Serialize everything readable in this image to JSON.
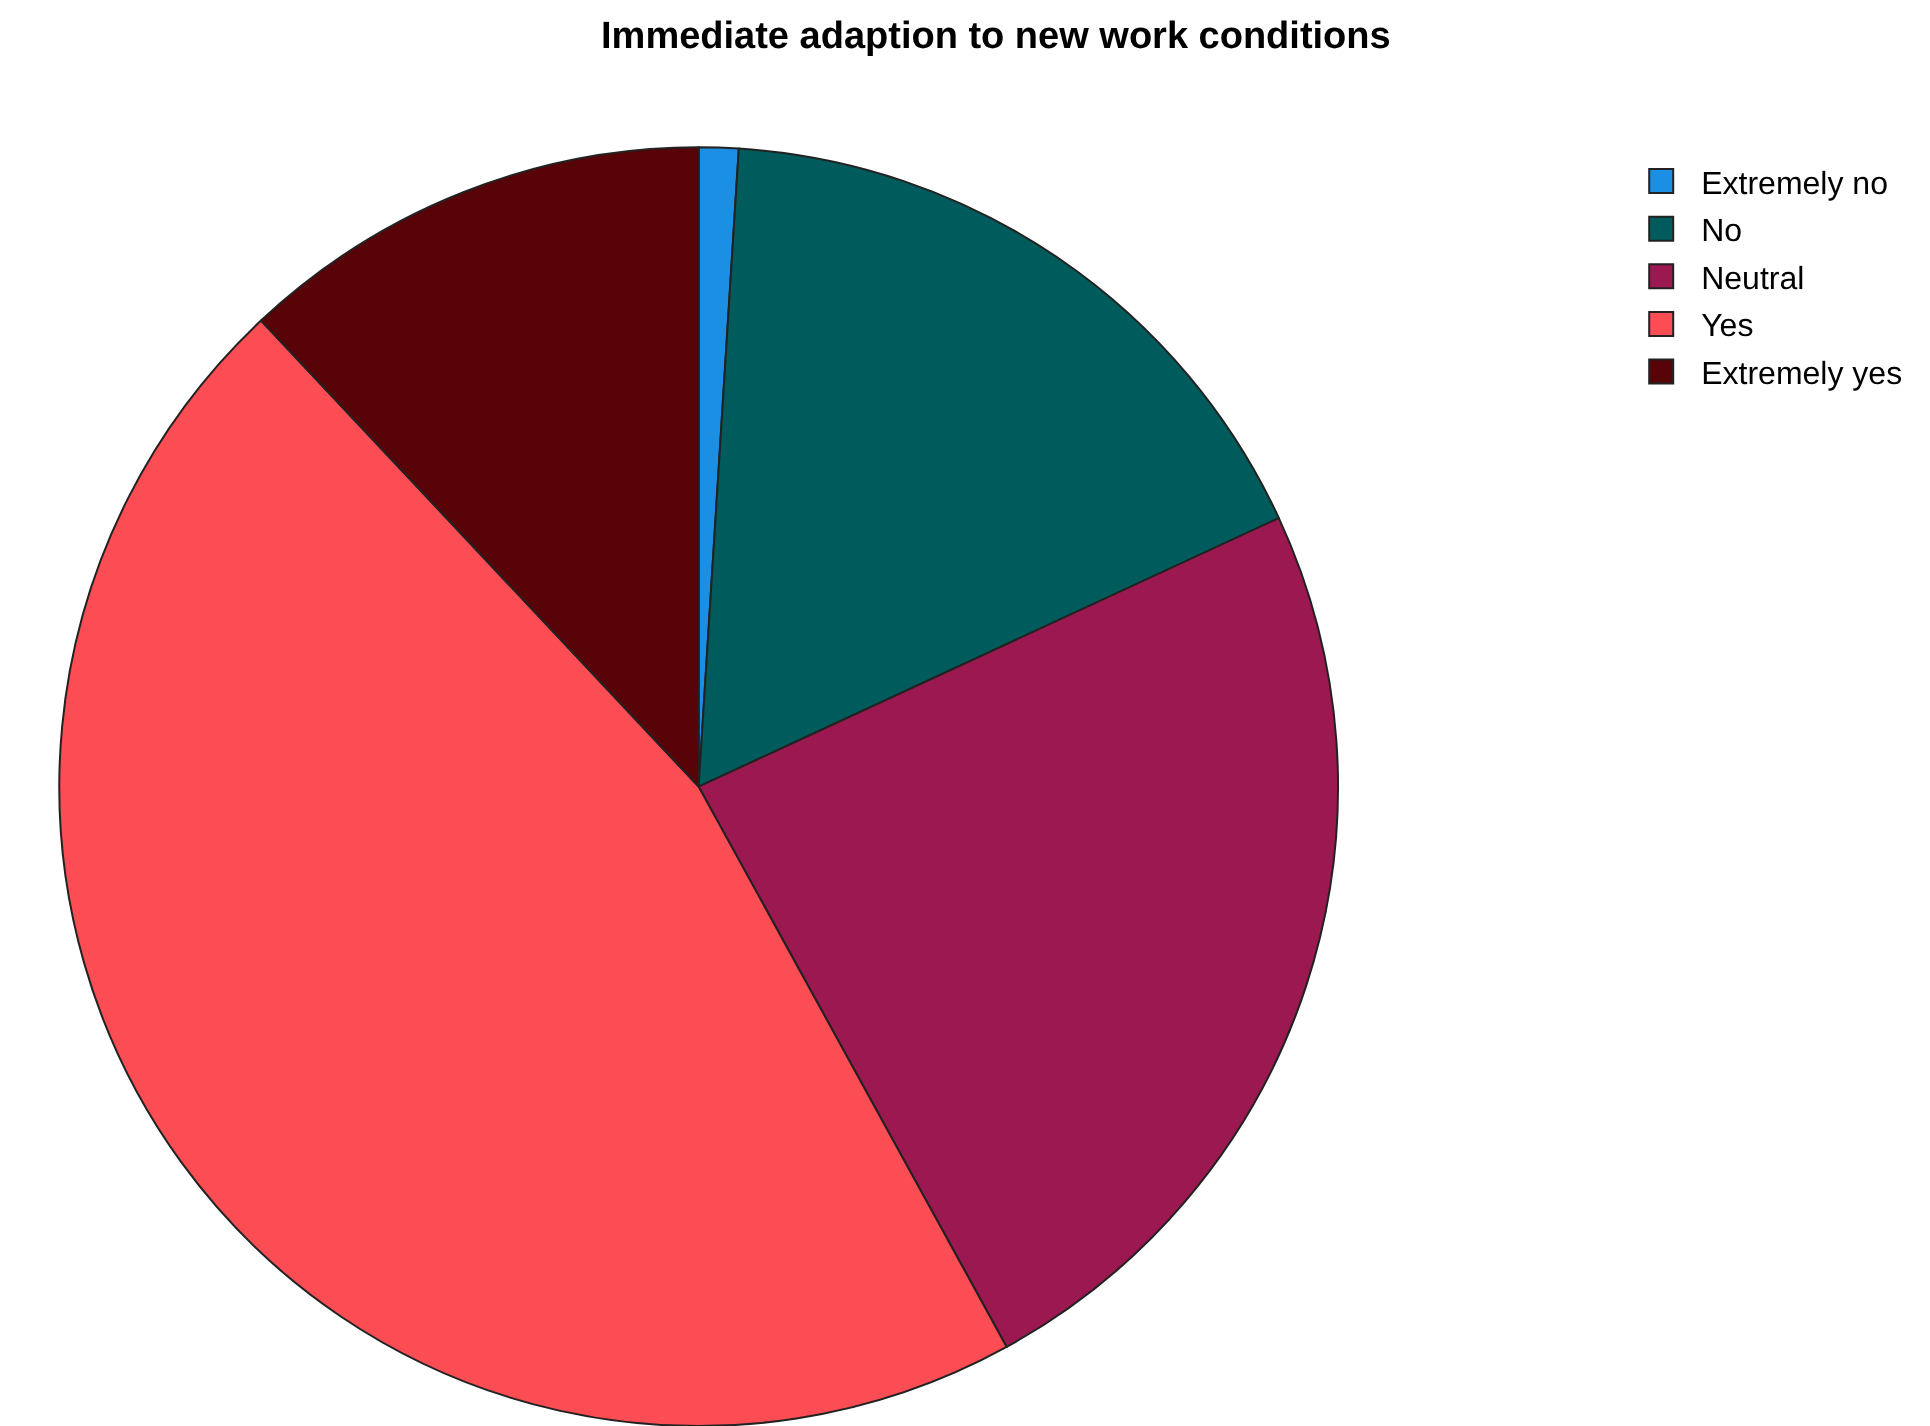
{
  "chart_data": {
    "type": "pie",
    "title": "Immediate adaption to new work conditions",
    "categories": [
      "Extremely no",
      "No",
      "Neutral",
      "Yes",
      "Extremely yes"
    ],
    "values": [
      1,
      17.1,
      23.9,
      46,
      12
    ],
    "colors": [
      "#1a8fe3",
      "#005c5c",
      "#9c1850",
      "#fc4d55",
      "#580308"
    ],
    "legend": "top right"
  }
}
